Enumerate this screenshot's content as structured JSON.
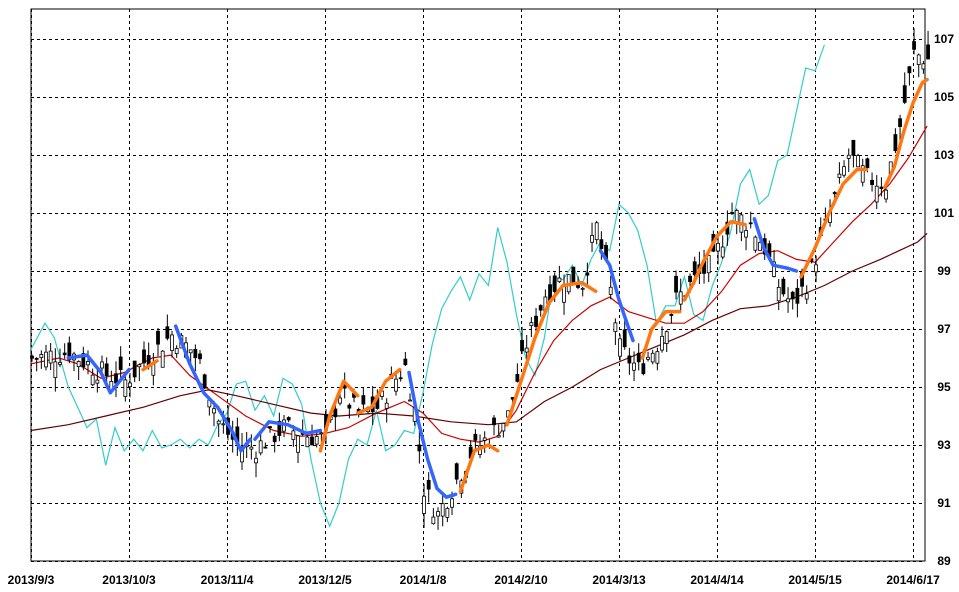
{
  "chart_data": {
    "type": "candlestick",
    "grid": true,
    "x_ticks": [
      "2013/9/3",
      "2013/10/3",
      "2013/11/4",
      "2013/12/5",
      "2014/1/8",
      "2014/2/10",
      "2014/3/13",
      "2014/4/14",
      "2014/5/15",
      "2014/6/17"
    ],
    "y_ticks": [
      "89",
      "91",
      "93",
      "95",
      "97",
      "99",
      "101",
      "103",
      "105",
      "107"
    ],
    "ylim": [
      89,
      108
    ],
    "x_range": [
      0,
      200
    ],
    "tick_positions": [
      0,
      21,
      42,
      63,
      84,
      105,
      126,
      147,
      168,
      189
    ],
    "candle_count": 193,
    "candle_close_points": [
      [
        0,
        96.0
      ],
      [
        8,
        96.2
      ],
      [
        15,
        95.5
      ],
      [
        20,
        95.2
      ],
      [
        26,
        96.2
      ],
      [
        30,
        96.8
      ],
      [
        34,
        96.3
      ],
      [
        36,
        95.8
      ],
      [
        40,
        93.8
      ],
      [
        44,
        93.0
      ],
      [
        48,
        92.9
      ],
      [
        54,
        93.6
      ],
      [
        60,
        93.3
      ],
      [
        63,
        93.2
      ],
      [
        66,
        94.8
      ],
      [
        70,
        94.1
      ],
      [
        74,
        94.3
      ],
      [
        78,
        95.3
      ],
      [
        80,
        95.7
      ],
      [
        82,
        94.2
      ],
      [
        84,
        91.5
      ],
      [
        87,
        90.6
      ],
      [
        90,
        91.5
      ],
      [
        94,
        92.7
      ],
      [
        98,
        93.3
      ],
      [
        102,
        94.0
      ],
      [
        106,
        96.5
      ],
      [
        110,
        98.2
      ],
      [
        114,
        98.8
      ],
      [
        118,
        98.6
      ],
      [
        121,
        100.5
      ],
      [
        124,
        98.3
      ],
      [
        126,
        96.3
      ],
      [
        130,
        95.6
      ],
      [
        134,
        96.5
      ],
      [
        138,
        98.0
      ],
      [
        142,
        98.7
      ],
      [
        146,
        99.3
      ],
      [
        150,
        101.0
      ],
      [
        154,
        100.6
      ],
      [
        157,
        99.8
      ],
      [
        160,
        98.5
      ],
      [
        163,
        97.8
      ],
      [
        166,
        98.6
      ],
      [
        168,
        99.5
      ],
      [
        171,
        101.0
      ],
      [
        175,
        103.0
      ],
      [
        179,
        102.2
      ],
      [
        183,
        102.0
      ],
      [
        186,
        104.0
      ],
      [
        189,
        106.5
      ],
      [
        192,
        106.3
      ]
    ],
    "series": [
      {
        "name": "",
        "color": "#33cccc",
        "points": [
          [
            0,
            96.3
          ],
          [
            3,
            97.2
          ],
          [
            5,
            96.7
          ],
          [
            8,
            95.0
          ],
          [
            10,
            94.3
          ],
          [
            12,
            93.6
          ],
          [
            14,
            93.9
          ],
          [
            16,
            92.3
          ],
          [
            18,
            93.6
          ],
          [
            20,
            92.8
          ],
          [
            22,
            93.2
          ],
          [
            24,
            92.8
          ],
          [
            26,
            93.5
          ],
          [
            28,
            92.9
          ],
          [
            30,
            93.0
          ],
          [
            32,
            93.2
          ],
          [
            34,
            92.9
          ],
          [
            36,
            93.2
          ],
          [
            38,
            93.0
          ],
          [
            40,
            93.7
          ],
          [
            42,
            94.1
          ],
          [
            44,
            95.1
          ],
          [
            46,
            95.2
          ],
          [
            48,
            94.2
          ],
          [
            50,
            94.7
          ],
          [
            52,
            94.0
          ],
          [
            54,
            95.3
          ],
          [
            56,
            95.1
          ],
          [
            58,
            94.4
          ],
          [
            60,
            92.5
          ],
          [
            62,
            91.0
          ],
          [
            64,
            90.2
          ],
          [
            66,
            91.0
          ],
          [
            68,
            92.5
          ],
          [
            70,
            93.2
          ],
          [
            72,
            93.0
          ],
          [
            74,
            94.2
          ],
          [
            76,
            92.8
          ],
          [
            78,
            93.0
          ],
          [
            80,
            93.5
          ],
          [
            82,
            93.4
          ],
          [
            84,
            94.8
          ],
          [
            86,
            96.5
          ],
          [
            88,
            97.7
          ],
          [
            90,
            98.3
          ],
          [
            92,
            98.8
          ],
          [
            94,
            98.0
          ],
          [
            96,
            98.9
          ],
          [
            98,
            98.5
          ],
          [
            100,
            100.5
          ],
          [
            102,
            99.3
          ],
          [
            104,
            97.5
          ],
          [
            106,
            96.0
          ],
          [
            108,
            95.4
          ],
          [
            110,
            96.7
          ],
          [
            112,
            98.8
          ],
          [
            114,
            98.7
          ],
          [
            116,
            99.2
          ],
          [
            118,
            98.5
          ],
          [
            120,
            99.4
          ],
          [
            122,
            100.0
          ],
          [
            124,
            99.7
          ],
          [
            126,
            101.3
          ],
          [
            128,
            101.0
          ],
          [
            130,
            100.4
          ],
          [
            132,
            99.2
          ],
          [
            134,
            97.2
          ],
          [
            136,
            97.8
          ],
          [
            138,
            97.8
          ],
          [
            140,
            98.8
          ],
          [
            142,
            97.5
          ],
          [
            144,
            97.3
          ],
          [
            146,
            98.5
          ],
          [
            148,
            99.3
          ],
          [
            150,
            100.4
          ],
          [
            152,
            102.0
          ],
          [
            154,
            102.5
          ],
          [
            156,
            101.3
          ],
          [
            158,
            101.6
          ],
          [
            160,
            102.8
          ],
          [
            162,
            103.0
          ],
          [
            164,
            104.5
          ],
          [
            166,
            106.0
          ],
          [
            168,
            105.9
          ],
          [
            170,
            106.8
          ]
        ]
      },
      {
        "name": "",
        "color": "#cc0000",
        "points": [
          [
            0,
            95.8
          ],
          [
            6,
            96.0
          ],
          [
            10,
            95.8
          ],
          [
            15,
            95.3
          ],
          [
            20,
            95.5
          ],
          [
            26,
            96.0
          ],
          [
            30,
            96.1
          ],
          [
            34,
            95.4
          ],
          [
            40,
            94.7
          ],
          [
            46,
            94.0
          ],
          [
            52,
            93.5
          ],
          [
            58,
            93.3
          ],
          [
            63,
            93.4
          ],
          [
            68,
            93.6
          ],
          [
            74,
            94.1
          ],
          [
            80,
            94.5
          ],
          [
            84,
            94.1
          ],
          [
            88,
            93.4
          ],
          [
            92,
            93.2
          ],
          [
            96,
            93.1
          ],
          [
            100,
            93.3
          ],
          [
            104,
            94.2
          ],
          [
            108,
            95.5
          ],
          [
            112,
            96.6
          ],
          [
            116,
            97.3
          ],
          [
            120,
            97.8
          ],
          [
            124,
            98.1
          ],
          [
            128,
            97.6
          ],
          [
            132,
            97.4
          ],
          [
            136,
            97.2
          ],
          [
            140,
            97.2
          ],
          [
            144,
            97.6
          ],
          [
            148,
            98.3
          ],
          [
            152,
            99.2
          ],
          [
            156,
            99.6
          ],
          [
            160,
            99.7
          ],
          [
            164,
            99.4
          ],
          [
            168,
            99.3
          ],
          [
            172,
            100.0
          ],
          [
            176,
            100.7
          ],
          [
            180,
            101.3
          ],
          [
            184,
            102.0
          ],
          [
            188,
            102.9
          ],
          [
            192,
            104.0
          ]
        ]
      },
      {
        "name": "",
        "color": "#660000",
        "points": [
          [
            0,
            93.5
          ],
          [
            8,
            93.7
          ],
          [
            16,
            94.0
          ],
          [
            24,
            94.3
          ],
          [
            32,
            94.7
          ],
          [
            38,
            94.9
          ],
          [
            44,
            94.7
          ],
          [
            52,
            94.4
          ],
          [
            60,
            94.1
          ],
          [
            66,
            94.0
          ],
          [
            74,
            94.1
          ],
          [
            82,
            94.0
          ],
          [
            90,
            93.8
          ],
          [
            98,
            93.7
          ],
          [
            104,
            93.8
          ],
          [
            110,
            94.5
          ],
          [
            116,
            95.0
          ],
          [
            122,
            95.6
          ],
          [
            128,
            96.0
          ],
          [
            134,
            96.4
          ],
          [
            140,
            96.8
          ],
          [
            146,
            97.3
          ],
          [
            152,
            97.7
          ],
          [
            158,
            97.8
          ],
          [
            164,
            98.1
          ],
          [
            170,
            98.5
          ],
          [
            176,
            99.0
          ],
          [
            182,
            99.4
          ],
          [
            186,
            99.7
          ],
          [
            190,
            100.0
          ],
          [
            192,
            100.3
          ]
        ]
      }
    ],
    "thick_segments": [
      {
        "color": "#3366ff",
        "points": [
          [
            8,
            96.0
          ],
          [
            12,
            96.1
          ],
          [
            15,
            95.5
          ],
          [
            17,
            94.8
          ],
          [
            19,
            95.2
          ],
          [
            21,
            95.6
          ]
        ]
      },
      {
        "color": "#ff7711",
        "points": [
          [
            24,
            95.6
          ],
          [
            27,
            95.9
          ]
        ]
      },
      {
        "color": "#3366ff",
        "points": [
          [
            31,
            97.1
          ],
          [
            34,
            95.8
          ],
          [
            37,
            94.8
          ],
          [
            40,
            94.3
          ]
        ]
      },
      {
        "color": "#3366ff",
        "points": [
          [
            40,
            94.3
          ],
          [
            43,
            93.5
          ],
          [
            45,
            92.8
          ],
          [
            47,
            93.2
          ]
        ]
      },
      {
        "color": "#3366ff",
        "points": [
          [
            48,
            93.2
          ],
          [
            51,
            93.8
          ],
          [
            55,
            93.7
          ],
          [
            59,
            93.4
          ],
          [
            62,
            93.5
          ]
        ]
      },
      {
        "color": "#ff7711",
        "points": [
          [
            62,
            92.8
          ],
          [
            64,
            94.0
          ],
          [
            67,
            95.2
          ],
          [
            70,
            94.7
          ]
        ]
      },
      {
        "color": "#ff7711",
        "points": [
          [
            70,
            94.1
          ],
          [
            73,
            94.3
          ],
          [
            76,
            95.2
          ],
          [
            79,
            95.6
          ]
        ]
      },
      {
        "color": "#3366ff",
        "points": [
          [
            81,
            95.5
          ],
          [
            83,
            93.8
          ],
          [
            85,
            92.5
          ],
          [
            87,
            91.5
          ],
          [
            89,
            91.2
          ],
          [
            91,
            91.3
          ]
        ]
      },
      {
        "color": "#ff7711",
        "points": [
          [
            92,
            91.4
          ],
          [
            95,
            92.8
          ],
          [
            98,
            93.0
          ],
          [
            100,
            92.8
          ]
        ]
      },
      {
        "color": "#ff7711",
        "points": [
          [
            102,
            93.7
          ],
          [
            105,
            95.2
          ],
          [
            108,
            96.7
          ],
          [
            111,
            97.9
          ],
          [
            114,
            98.5
          ],
          [
            118,
            98.6
          ],
          [
            121,
            98.3
          ]
        ]
      },
      {
        "color": "#3366ff",
        "points": [
          [
            122,
            99.7
          ],
          [
            124,
            99.2
          ],
          [
            126,
            98.0
          ],
          [
            129,
            96.6
          ]
        ]
      },
      {
        "color": "#ff7711",
        "points": [
          [
            131,
            96.0
          ],
          [
            133,
            97.0
          ],
          [
            136,
            97.6
          ],
          [
            139,
            97.6
          ]
        ]
      },
      {
        "color": "#ff7711",
        "points": [
          [
            140,
            98.0
          ],
          [
            142,
            98.6
          ],
          [
            144,
            99.3
          ],
          [
            147,
            100.2
          ],
          [
            150,
            100.7
          ],
          [
            153,
            100.6
          ]
        ]
      },
      {
        "color": "#3366ff",
        "points": [
          [
            155,
            100.8
          ],
          [
            157,
            99.8
          ],
          [
            159,
            99.2
          ],
          [
            162,
            99.1
          ],
          [
            164,
            99.0
          ]
        ]
      },
      {
        "color": "#ff7711",
        "points": [
          [
            165,
            98.8
          ],
          [
            168,
            99.8
          ],
          [
            171,
            101.0
          ],
          [
            174,
            102.0
          ],
          [
            177,
            102.5
          ],
          [
            179,
            102.5
          ]
        ]
      },
      {
        "color": "#ff7711",
        "points": [
          [
            183,
            101.9
          ],
          [
            185,
            102.6
          ],
          [
            187,
            103.8
          ],
          [
            189,
            104.8
          ],
          [
            191,
            105.5
          ],
          [
            192,
            105.6
          ]
        ]
      }
    ]
  }
}
